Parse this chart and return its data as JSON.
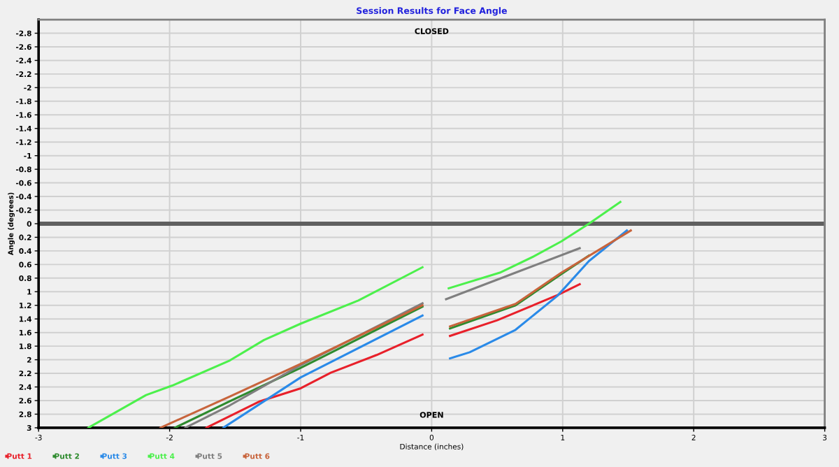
{
  "chart_data": {
    "type": "line",
    "title": "Session Results for Face Angle",
    "xlabel": "Distance (inches)",
    "ylabel": "Angle (degrees)",
    "xlim": [
      -3,
      3
    ],
    "xticks": [
      -3,
      -2,
      -1,
      0,
      1,
      2,
      3
    ],
    "ylim": [
      3,
      -3
    ],
    "yticks": [
      -2.8,
      -2.6,
      -2.4,
      -2.2,
      -2,
      -1.8,
      -1.6,
      -1.4,
      -1.2,
      -1,
      -0.8,
      -0.6,
      -0.4,
      -0.2,
      0,
      0.2,
      0.4,
      0.6,
      0.8,
      1,
      1.2,
      1.4,
      1.6,
      1.8,
      2,
      2.2,
      2.4,
      2.6,
      2.8,
      3
    ],
    "grid": true,
    "legend": "bottom",
    "marker": "none",
    "line_style": "solid",
    "ref_lines": [
      {
        "axis": "y",
        "value": 0,
        "color": "#606060"
      }
    ],
    "annotations": [
      "CLOSED",
      "OPEN"
    ],
    "series": [
      {
        "name": "Putt 1",
        "color": "#e8202a",
        "x": [
          -1.72,
          -1.31,
          -1.0,
          -0.77,
          -0.42,
          -0.07,
          0.05,
          0.14,
          0.5,
          0.96,
          1.13
        ],
        "values": [
          3.0,
          2.61,
          2.42,
          2.19,
          1.93,
          1.63,
          null,
          1.65,
          1.42,
          1.05,
          0.89
        ]
      },
      {
        "name": "Putt 2",
        "color": "#2e8b2e",
        "x": [
          -1.96,
          -1.54,
          -1.01,
          -0.07,
          0.05,
          0.14,
          0.64,
          0.99,
          1.2
        ],
        "values": [
          3.0,
          2.61,
          2.13,
          1.22,
          null,
          1.54,
          1.2,
          0.74,
          0.47
        ]
      },
      {
        "name": "Putt 3",
        "color": "#2a8ae8",
        "x": [
          -1.59,
          -1.0,
          -0.07,
          0.05,
          0.14,
          0.29,
          0.64,
          0.96,
          1.2,
          1.49
        ],
        "values": [
          3.0,
          2.26,
          1.35,
          null,
          1.98,
          1.89,
          1.56,
          1.06,
          0.55,
          0.1
        ]
      },
      {
        "name": "Putt 4",
        "color": "#4cf04c",
        "x": [
          -2.62,
          -2.18,
          -1.98,
          -1.54,
          -1.28,
          -1.0,
          -0.56,
          -0.07,
          0.05,
          0.13,
          0.52,
          0.78,
          0.99,
          1.2,
          1.44
        ],
        "values": [
          3.0,
          2.52,
          2.38,
          2.01,
          1.71,
          1.47,
          1.13,
          0.64,
          null,
          0.95,
          0.72,
          0.48,
          0.26,
          0.0,
          -0.32
        ]
      },
      {
        "name": "Putt 5",
        "color": "#7f7f7f",
        "x": [
          -1.88,
          -1.54,
          -1.01,
          -0.07,
          0.05,
          0.11,
          0.64,
          1.13
        ],
        "values": [
          3.0,
          2.67,
          2.09,
          1.17,
          null,
          1.11,
          0.72,
          0.36
        ]
      },
      {
        "name": "Putt 6",
        "color": "#c8643c",
        "x": [
          -2.07,
          -1.54,
          -1.01,
          -0.07,
          0.05,
          0.14,
          0.64,
          0.99,
          1.52
        ],
        "values": [
          3.0,
          2.54,
          2.07,
          1.2,
          null,
          1.51,
          1.18,
          0.72,
          0.1
        ]
      }
    ]
  }
}
